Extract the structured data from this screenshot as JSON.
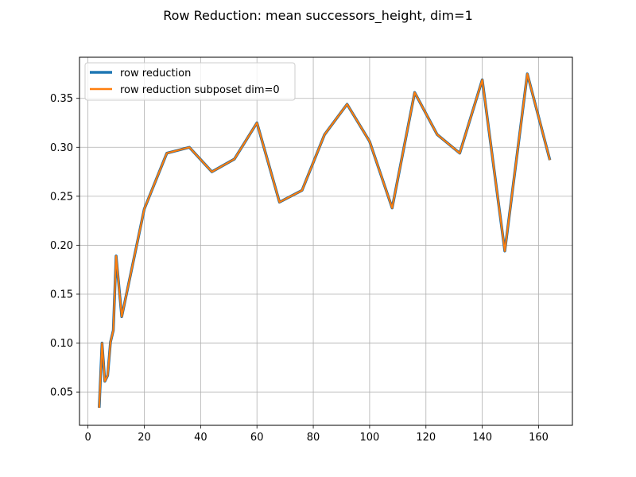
{
  "chart_data": {
    "type": "line",
    "title": "Row Reduction: mean successors_height, dim=1",
    "xlabel": "",
    "ylabel": "",
    "xlim": [
      -3.0,
      172.0
    ],
    "ylim": [
      0.016,
      0.392
    ],
    "xticks": [
      0,
      20,
      40,
      60,
      80,
      100,
      120,
      140,
      160
    ],
    "yticks": [
      0.05,
      0.1,
      0.15,
      0.2,
      0.25,
      0.3,
      0.35
    ],
    "xtick_labels": [
      "0",
      "20",
      "40",
      "60",
      "80",
      "100",
      "120",
      "140",
      "160"
    ],
    "ytick_labels": [
      "0.05",
      "0.10",
      "0.15",
      "0.20",
      "0.25",
      "0.30",
      "0.35"
    ],
    "grid": true,
    "legend_position": "top-left",
    "x": [
      4,
      5,
      6,
      7,
      8,
      9,
      10,
      12,
      20,
      28,
      36,
      44,
      52,
      60,
      68,
      76,
      84,
      92,
      100,
      108,
      116,
      124,
      132,
      140,
      148,
      156,
      164
    ],
    "series": [
      {
        "name": "row reduction",
        "color": "#1f77b4",
        "values": [
          0.034,
          0.1,
          0.061,
          0.067,
          0.101,
          0.113,
          0.189,
          0.127,
          0.237,
          0.294,
          0.3,
          0.275,
          0.288,
          0.325,
          0.244,
          0.256,
          0.313,
          0.344,
          0.306,
          0.238,
          0.356,
          0.313,
          0.294,
          0.369,
          0.194,
          0.375,
          0.287
        ]
      },
      {
        "name": "row reduction subposet dim=0",
        "color": "#ff7f0e",
        "values": [
          0.034,
          0.1,
          0.061,
          0.067,
          0.101,
          0.113,
          0.189,
          0.127,
          0.237,
          0.294,
          0.3,
          0.275,
          0.288,
          0.325,
          0.244,
          0.256,
          0.313,
          0.344,
          0.306,
          0.238,
          0.356,
          0.313,
          0.294,
          0.369,
          0.194,
          0.375,
          0.287
        ]
      }
    ]
  }
}
